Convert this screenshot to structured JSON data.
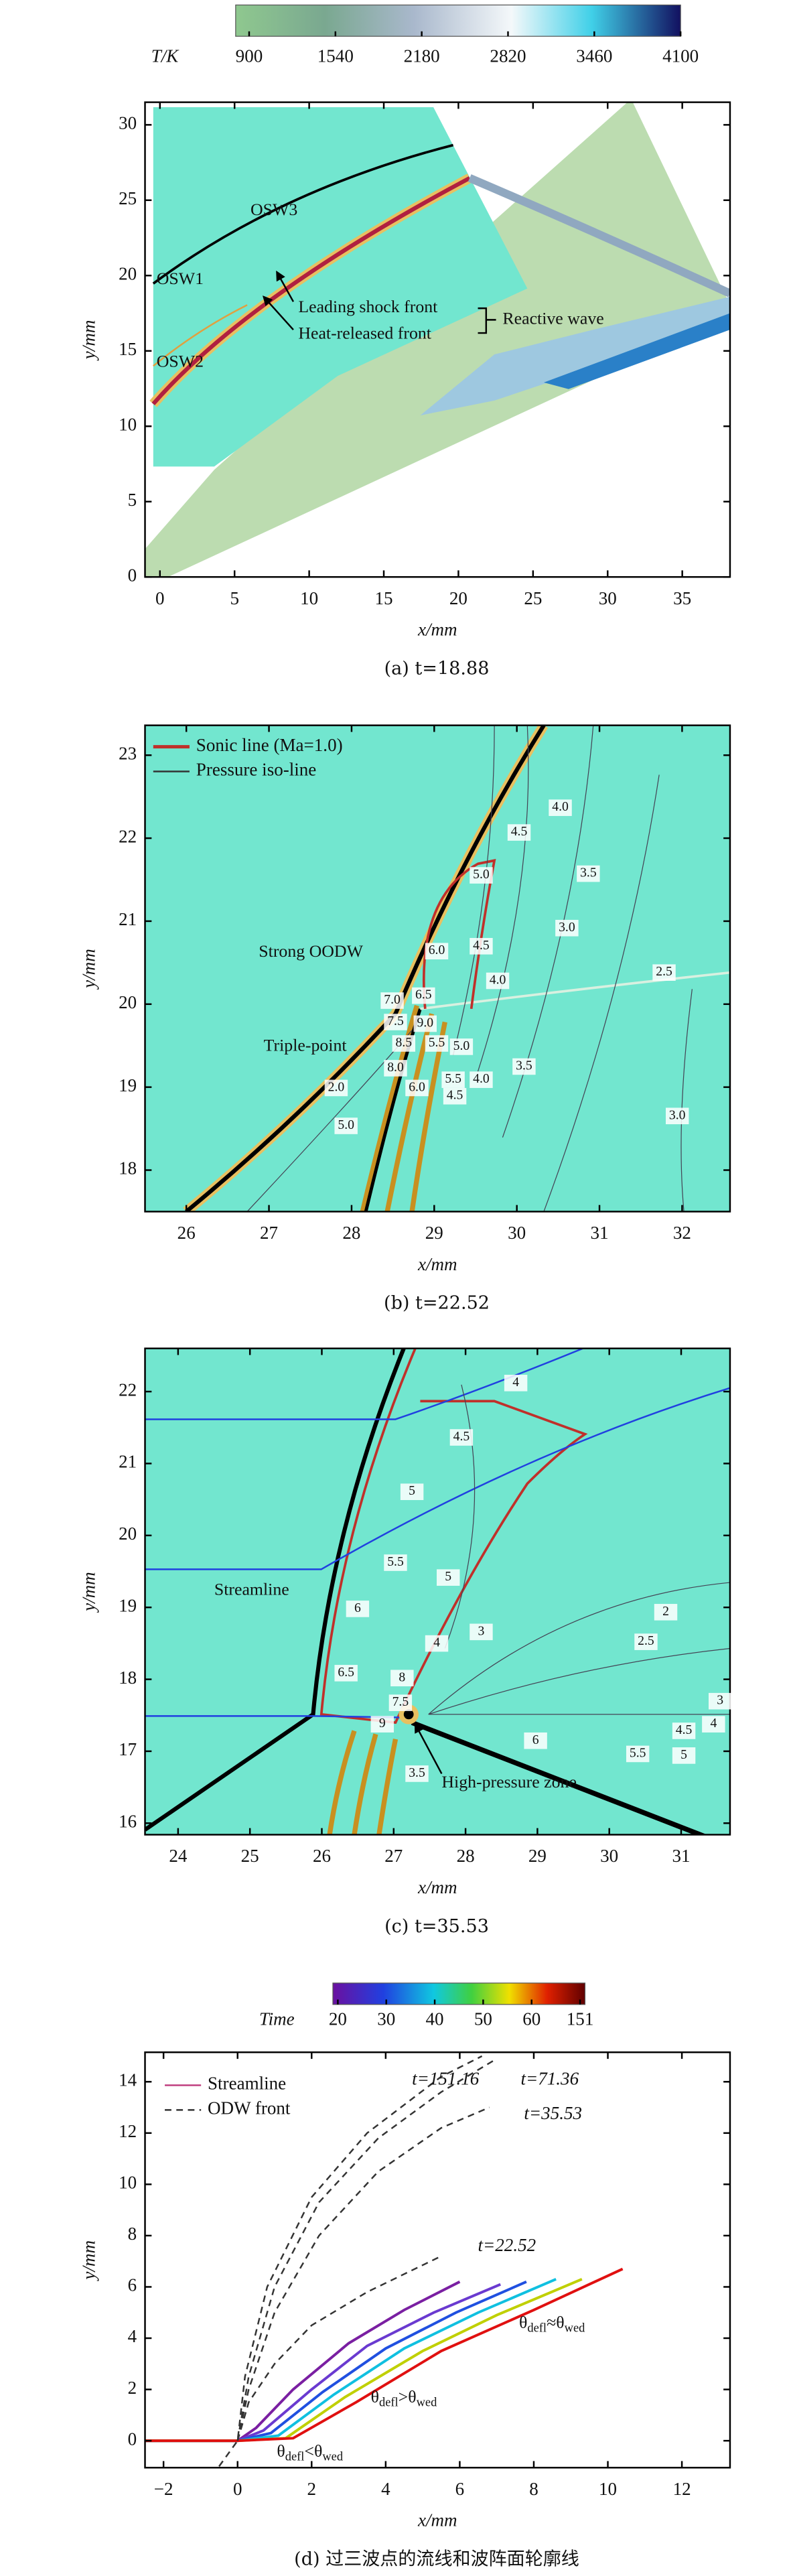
{
  "chart_data": [
    {
      "type": "contour",
      "colorbar": {
        "label": "T/K",
        "lim": [
          800,
          4100
        ],
        "ticks": [
          900,
          1540,
          2180,
          2820,
          3460,
          4100
        ]
      },
      "xlim": [
        -1,
        38.2
      ],
      "xticks": [
        0,
        5,
        10,
        15,
        20,
        25,
        30,
        35
      ],
      "ylim": [
        0,
        31.5
      ],
      "yticks": [
        0,
        5,
        10,
        15,
        20,
        25,
        30
      ],
      "xlabel": "x/mm",
      "ylabel": "y/mm",
      "caption": "(a) t=18.88",
      "annotations": [
        "OSW3",
        "OSW1",
        "OSW2",
        "Leading shock front",
        "Heat-released front",
        "Reactive wave"
      ]
    },
    {
      "type": "contour",
      "legend": [
        {
          "name": "Sonic line (Ma=1.0)",
          "color": "#c0302a"
        },
        {
          "name": "Pressure iso-line",
          "color": "#333333"
        }
      ],
      "xlim": [
        25.5,
        32.58
      ],
      "xticks": [
        26,
        27,
        28,
        29,
        30,
        31,
        32
      ],
      "ylim": [
        17.5,
        23.36
      ],
      "yticks": [
        18,
        19,
        20,
        21,
        22,
        23
      ],
      "xlabel": "x/mm",
      "ylabel": "y/mm",
      "caption": "(b) t=22.52",
      "contour_labels": [
        {
          "value": 5,
          "label": "5.0"
        },
        4.5,
        {
          "value": 4,
          "label": "4.0"
        },
        3.5,
        {
          "value": 3,
          "label": "3.0"
        },
        2.5,
        {
          "value": 6,
          "label": "6.0"
        },
        4.5,
        {
          "value": 4,
          "label": "4.0"
        },
        {
          "value": 7,
          "label": "7.0"
        },
        6.5,
        7.5,
        {
          "value": 9,
          "label": "9.0"
        },
        8.5,
        {
          "value": 8,
          "label": "8.0"
        },
        5.5,
        {
          "value": 5,
          "label": "5.0"
        },
        {
          "value": 6,
          "label": "6.0"
        },
        5.5,
        4.5,
        {
          "value": 4,
          "label": "4.0"
        },
        3.5,
        {
          "value": 3,
          "label": "3.0"
        },
        {
          "value": 2,
          "label": "2.0"
        },
        {
          "value": 5,
          "label": "5.0"
        }
      ],
      "annotations": [
        "Strong OODW",
        "Triple-point"
      ]
    },
    {
      "type": "contour",
      "xlim": [
        23.54,
        31.68
      ],
      "xticks": [
        24,
        25,
        26,
        27,
        28,
        29,
        30,
        31
      ],
      "ylim": [
        15.84,
        22.6
      ],
      "yticks": [
        16,
        17,
        18,
        19,
        20,
        21,
        22
      ],
      "xlabel": "x/mm",
      "ylabel": "y/mm",
      "caption": "(c) t=35.53",
      "contour_labels": [
        4,
        4.5,
        5,
        5.5,
        6,
        5,
        4,
        3,
        2,
        2.5,
        6.5,
        8,
        7.5,
        9,
        3.5,
        6,
        5.5,
        4.5,
        4,
        3,
        5
      ],
      "annotations": [
        "Streamline",
        "High-pressure zone"
      ]
    },
    {
      "type": "line",
      "colorbar": {
        "label": "Time",
        "ticks": [
          20,
          30,
          40,
          50,
          60,
          151
        ]
      },
      "legend": [
        {
          "name": "Streamline",
          "color": "#c04080"
        },
        {
          "name": "ODW front",
          "color": "#333333"
        }
      ],
      "xlim": [
        -2.5,
        13.3
      ],
      "xticks": [
        {
          "value": -2,
          "label": "−2"
        },
        0,
        2,
        4,
        6,
        8,
        10,
        12
      ],
      "ylim": [
        -1.05,
        15.15
      ],
      "yticks": [
        0,
        2,
        4,
        6,
        8,
        10,
        12,
        14
      ],
      "xlabel": "x/mm",
      "ylabel": "y/mm",
      "caption": "(d) 过三波点的流线和波阵面轮廓线",
      "fronts": [
        {
          "label": "t=151.16",
          "x": [
            -0.5,
            0,
            0.2,
            0.8,
            2,
            3.5,
            5.5,
            6.6
          ],
          "y": [
            -1,
            0,
            2.5,
            6,
            9.5,
            12,
            14.2,
            15
          ]
        },
        {
          "label": "t=71.36",
          "x": [
            0,
            0.3,
            1,
            2.2,
            3.8,
            5.5,
            7
          ],
          "y": [
            0,
            2.5,
            6,
            9.3,
            11.8,
            13.6,
            14.9
          ]
        },
        {
          "label": "t=35.53",
          "x": [
            0,
            0.3,
            1,
            2.2,
            3.8,
            5.5,
            6.8
          ],
          "y": [
            0,
            2,
            5,
            8,
            10.5,
            12.2,
            13
          ]
        },
        {
          "label": "t=22.52",
          "x": [
            0,
            0.3,
            1,
            2,
            3.5,
            5.5
          ],
          "y": [
            0,
            1.5,
            3,
            4.5,
            5.8,
            7.2
          ]
        }
      ],
      "streamlines": [
        {
          "color": "#7a1fa2",
          "x": [
            -2.5,
            0,
            0.5,
            1.5,
            3,
            4.5,
            6
          ],
          "y": [
            0,
            0,
            0.5,
            2,
            3.8,
            5.1,
            6.2
          ]
        },
        {
          "color": "#6a3ad0",
          "x": [
            -2.5,
            0,
            0.7,
            2,
            3.5,
            5.3,
            7.1
          ],
          "y": [
            0,
            0,
            0.4,
            2,
            3.7,
            5,
            6.1
          ]
        },
        {
          "color": "#2050e0",
          "x": [
            -2.5,
            0,
            0.9,
            2.3,
            4,
            5.9,
            7.8
          ],
          "y": [
            0,
            0,
            0.3,
            1.9,
            3.6,
            5,
            6.2
          ]
        },
        {
          "color": "#10c0e0",
          "x": [
            -2.5,
            0,
            1.1,
            2.6,
            4.5,
            6.5,
            8.6
          ],
          "y": [
            0,
            0,
            0.2,
            1.8,
            3.6,
            5,
            6.3
          ]
        },
        {
          "color": "#c0d000",
          "x": [
            -2.5,
            0,
            1.3,
            2.9,
            5,
            7,
            9.3
          ],
          "y": [
            0,
            0,
            0.1,
            1.7,
            3.5,
            4.9,
            6.3
          ]
        },
        {
          "color": "#e01010",
          "x": [
            -2.5,
            0,
            1.5,
            3.2,
            5.5,
            8,
            10.4
          ],
          "y": [
            0,
            0,
            0.1,
            1.5,
            3.5,
            5.1,
            6.7
          ]
        }
      ],
      "annotations": [
        {
          "parts": [
            "θ",
            "defl",
            "≈θ",
            "wed"
          ]
        },
        {
          "parts": [
            "θ",
            "defl",
            ">θ",
            "wed"
          ]
        },
        {
          "parts": [
            "θ",
            "defl",
            "<θ",
            "wed"
          ]
        }
      ]
    }
  ]
}
